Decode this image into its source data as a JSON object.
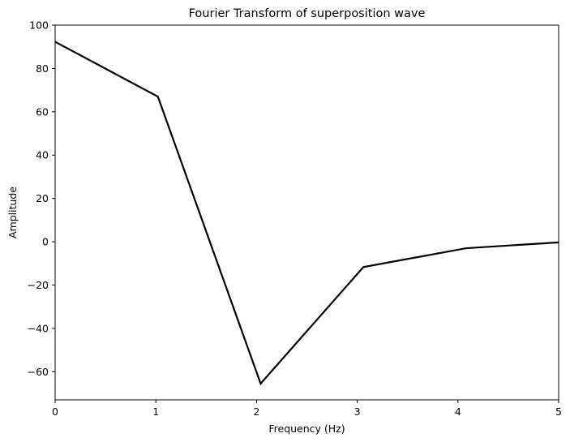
{
  "chart_data": {
    "type": "line",
    "title": "Fourier Transform of superposition wave",
    "xlabel": "Frequency (Hz)",
    "ylabel": "Amplitude",
    "xlim": [
      0,
      5
    ],
    "ylim": [
      -73,
      100
    ],
    "xticks": [
      0,
      1,
      2,
      3,
      4,
      5
    ],
    "yticks": [
      -60,
      -40,
      -20,
      0,
      20,
      40,
      60,
      80,
      100
    ],
    "grid": false,
    "series": [
      {
        "color": "#000000",
        "x": [
          0,
          1.0204,
          2.0408,
          3.0612,
          4.0816,
          5.0
        ],
        "y": [
          92.3,
          67.0,
          -65.5,
          -11.7,
          -3.0,
          -0.3
        ]
      }
    ]
  }
}
